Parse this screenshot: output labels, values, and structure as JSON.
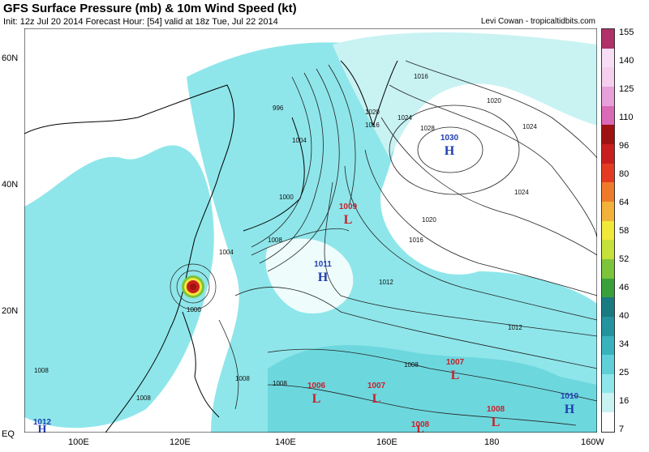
{
  "header": {
    "title": "GFS Surface Pressure (mb) & 10m Wind Speed (kt)",
    "subtitle": "Init: 12z Jul 20 2014 Forecast Hour: [54] valid at 18z Tue, Jul 22 2014",
    "credit": "Levi Cowan - tropicaltidbits.com"
  },
  "axes": {
    "lat_labels": [
      "60N",
      "40N",
      "20N",
      "EQ"
    ],
    "lon_labels": [
      "100E",
      "120E",
      "140E",
      "160E",
      "180",
      "160W"
    ]
  },
  "colorbar": {
    "labels": [
      "155",
      "140",
      "125",
      "110",
      "96",
      "80",
      "64",
      "58",
      "52",
      "46",
      "40",
      "34",
      "25",
      "16",
      "7"
    ],
    "colors": [
      "#ffffff",
      "#c9f2f3",
      "#8ee6ea",
      "#5fd0d8",
      "#3ab2bd",
      "#24939e",
      "#1a7a82",
      "#3aa03a",
      "#7cc43a",
      "#c8e03a",
      "#f2e83a",
      "#f2b23a",
      "#ee7a2a",
      "#e43a22",
      "#c81e1e",
      "#9e1212",
      "#d86ab8",
      "#e8a0d8",
      "#f4cfee",
      "#f7def4",
      "#b03068"
    ]
  },
  "pressure_centers": [
    {
      "type": "H",
      "value": "1030",
      "color": "#1f3fb0"
    },
    {
      "type": "L",
      "value": "1009",
      "color": "#c8202a"
    },
    {
      "type": "H",
      "value": "1011",
      "color": "#1f3fb0"
    },
    {
      "type": "L",
      "value": "1006",
      "color": "#c8202a"
    },
    {
      "type": "L",
      "value": "1007",
      "color": "#c8202a"
    },
    {
      "type": "L",
      "value": "1007",
      "color": "#c8202a"
    },
    {
      "type": "L",
      "value": "1008",
      "color": "#c8202a"
    },
    {
      "type": "L",
      "value": "1008",
      "color": "#c8202a"
    },
    {
      "type": "H",
      "value": "1010",
      "color": "#1f3fb0"
    },
    {
      "type": "H",
      "value": "1012",
      "color": "#1f3fb0"
    }
  ],
  "isobar_labels": [
    "1016",
    "1020",
    "1024",
    "1028",
    "1024",
    "1020",
    "1016",
    "1012",
    "1012",
    "1008",
    "1008",
    "1008",
    "1004",
    "1004",
    "1000",
    "1000",
    "996",
    "1008",
    "1008",
    "1008",
    "1020",
    "1016",
    "1024"
  ]
}
